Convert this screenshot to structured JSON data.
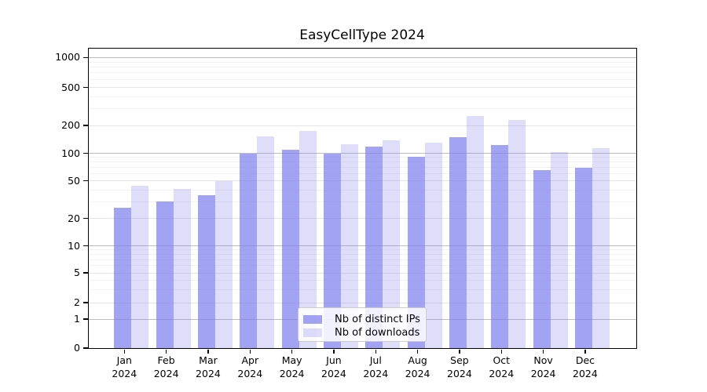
{
  "chart_data": {
    "type": "bar",
    "title": "EasyCellType 2024",
    "categories": [
      "Jan 2024",
      "Feb 2024",
      "Mar 2024",
      "Apr 2024",
      "May 2024",
      "Jun 2024",
      "Jul 2024",
      "Aug 2024",
      "Sep 2024",
      "Oct 2024",
      "Nov 2024",
      "Dec 2024"
    ],
    "months": [
      "Jan",
      "Feb",
      "Mar",
      "Apr",
      "May",
      "Jun",
      "Jul",
      "Aug",
      "Sep",
      "Oct",
      "Nov",
      "Dec"
    ],
    "year": "2024",
    "series": [
      {
        "name": "Nb of distinct IPs",
        "color": "#7c7cee",
        "alpha": 0.7,
        "values": [
          26,
          30,
          35,
          100,
          110,
          99,
          118,
          92,
          150,
          122,
          65,
          70
        ]
      },
      {
        "name": "Nb of downloads",
        "color": "#7c7cee",
        "alpha": 0.25,
        "values": [
          44,
          41,
          50,
          152,
          174,
          126,
          139,
          130,
          252,
          227,
          102,
          113
        ]
      }
    ],
    "y_axis": {
      "scale": "log-1-2-5-with-zero",
      "ticks": [
        0,
        1,
        2,
        5,
        10,
        20,
        50,
        100,
        200,
        500,
        1000
      ],
      "minor_gridlines": [
        3,
        4,
        6,
        7,
        8,
        9,
        30,
        40,
        60,
        70,
        80,
        90,
        300,
        400,
        600,
        700,
        800,
        900
      ],
      "range_top": 1250
    },
    "xlabel": "",
    "ylabel": "",
    "grid": true,
    "legend_position": "bottom-center",
    "colors": {
      "major_grid": "#bdbdbd",
      "labeled_grid": "#e4e4e4",
      "minor_grid": "#f2f2f2",
      "axis": "#000000",
      "text": "#000000"
    }
  }
}
